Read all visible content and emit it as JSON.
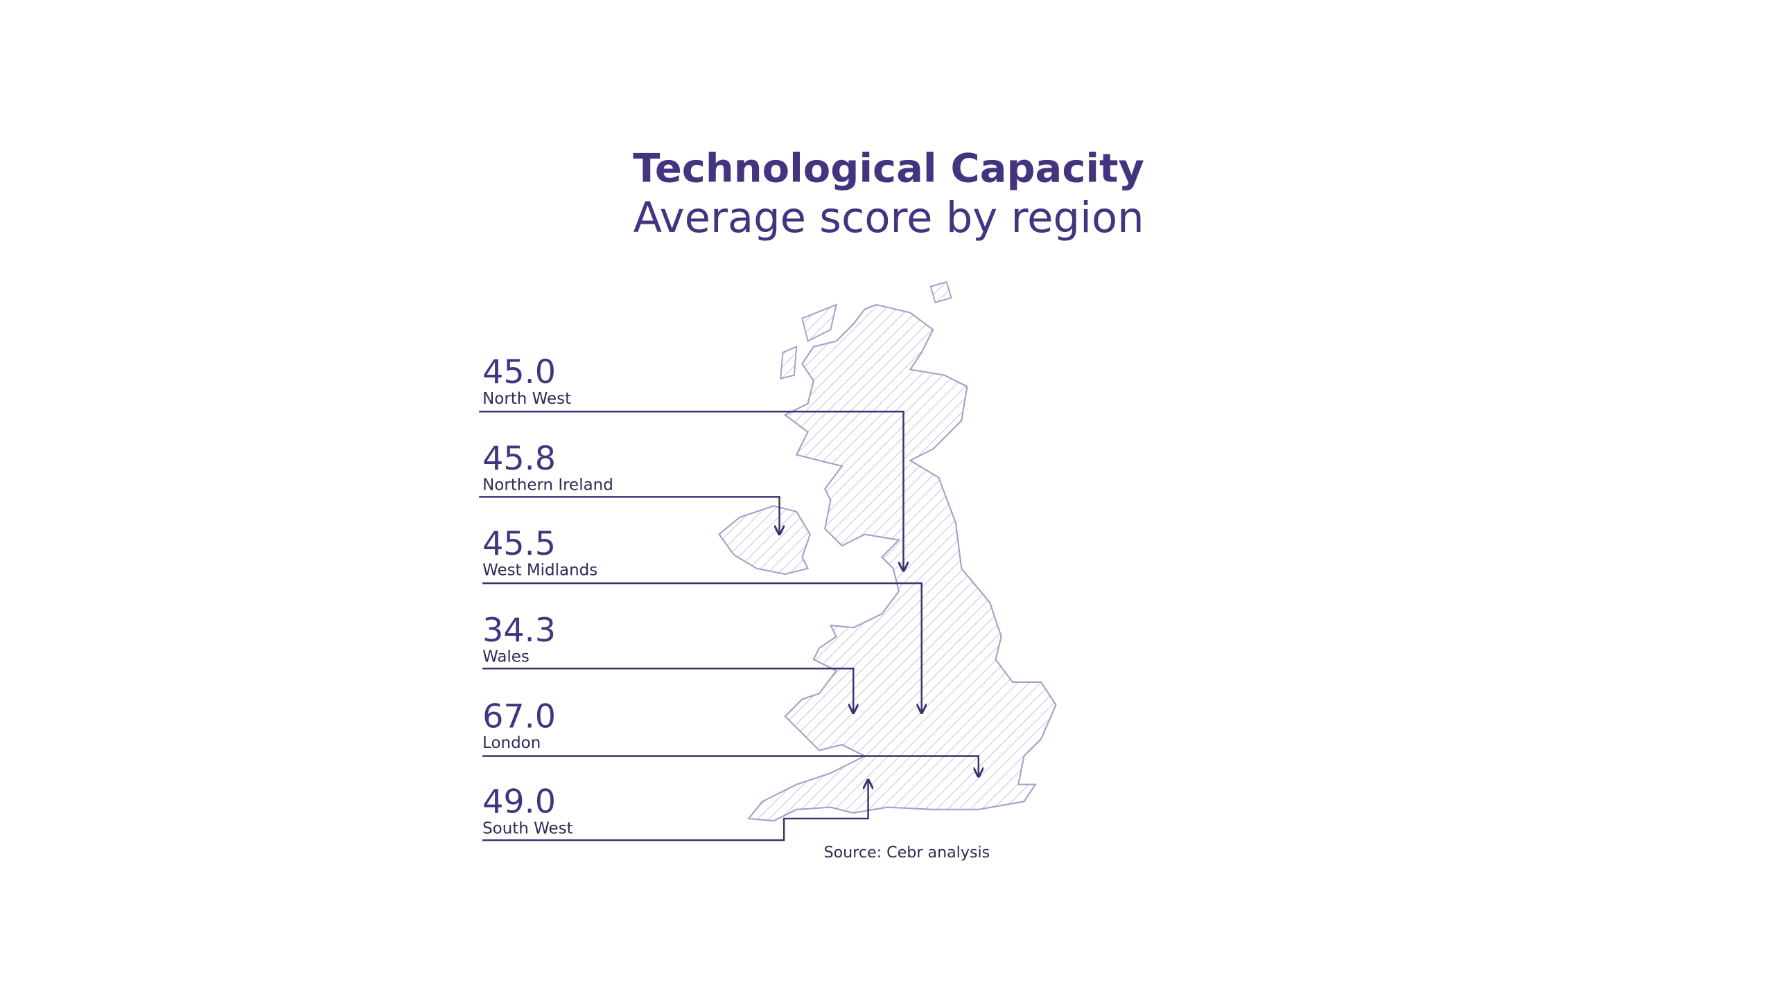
{
  "header": {
    "title": "Technological Capacity",
    "subtitle": "Average score by region"
  },
  "regions": [
    {
      "value": "45.0",
      "label": "North West"
    },
    {
      "value": "45.8",
      "label": "Northern Ireland"
    },
    {
      "value": "45.5",
      "label": "West Midlands"
    },
    {
      "value": "34.3",
      "label": "Wales"
    },
    {
      "value": "67.0",
      "label": "London"
    },
    {
      "value": "49.0",
      "label": "South West"
    }
  ],
  "source": "Source: Cebr analysis"
}
